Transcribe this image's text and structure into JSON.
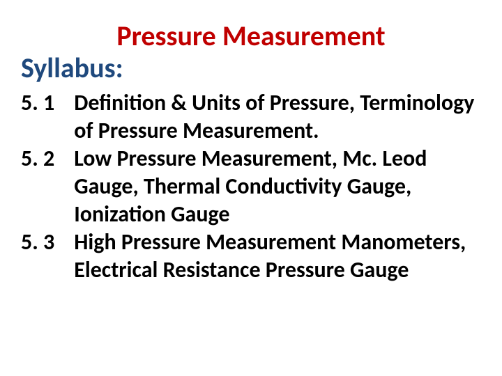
{
  "title": {
    "text": "Pressure Measurement",
    "color": "#c00000",
    "fontsize": 40
  },
  "syllabus": {
    "text": "Syllabus:",
    "color": "#1f497d",
    "fontsize": 40
  },
  "body": {
    "color": "#000000",
    "fontsize": 32
  },
  "items": [
    {
      "num": "5. 1",
      "desc": "Definition & Units of Pressure, Terminology of Pressure Measurement."
    },
    {
      "num": "5. 2",
      "desc": "Low Pressure Measurement, Mc. Leod Gauge, Thermal Conductivity Gauge, Ionization Gauge"
    },
    {
      "num": "5. 3",
      "desc": "High Pressure Measurement Manometers, Electrical Resistance Pressure Gauge"
    }
  ]
}
